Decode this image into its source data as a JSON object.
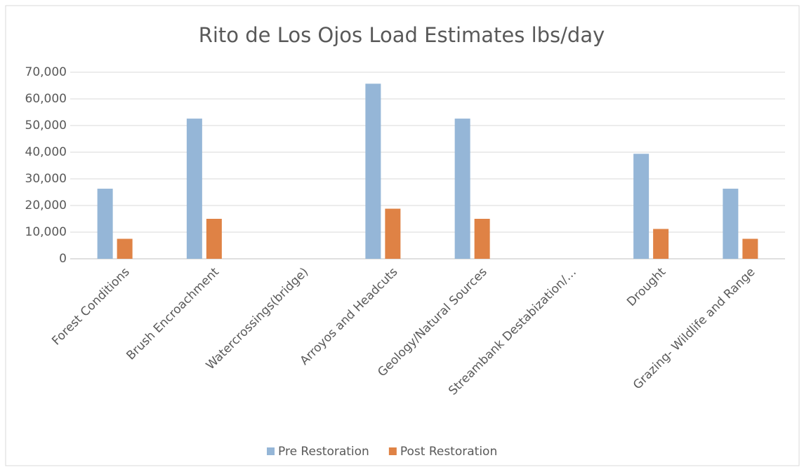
{
  "chart_data": {
    "type": "bar",
    "title": "Rito de Los Ojos Load Estimates lbs/day",
    "categories": [
      "Forest Conditions",
      "Brush Encroachment",
      "Watercrossings(bridge)",
      "Arroyos and Headcuts",
      "Geology/Natural Sources",
      "Streambank Destabization/…",
      "Drought",
      "Grazing- Wildlife and Range"
    ],
    "series": [
      {
        "name": "Pre Restoration",
        "color": "#95b6d7",
        "values": [
          26300,
          52600,
          0,
          65700,
          52600,
          0,
          39400,
          26300
        ]
      },
      {
        "name": "Post Restoration",
        "color": "#df8245",
        "values": [
          7500,
          15000,
          0,
          18800,
          15000,
          0,
          11200,
          7500
        ]
      }
    ],
    "ylim": [
      0,
      70000
    ],
    "yticks": [
      0,
      {
        "value": 10000,
        "label": "10,000"
      },
      {
        "value": 20000,
        "label": "20,000"
      },
      {
        "value": 30000,
        "label": "30,000"
      },
      {
        "value": 40000,
        "label": "40,000"
      },
      {
        "value": 50000,
        "label": "50,000"
      },
      {
        "value": 60000,
        "label": "60,000"
      },
      {
        "value": 70000,
        "label": "70,000"
      }
    ],
    "grid": true,
    "legend": "bottom"
  }
}
